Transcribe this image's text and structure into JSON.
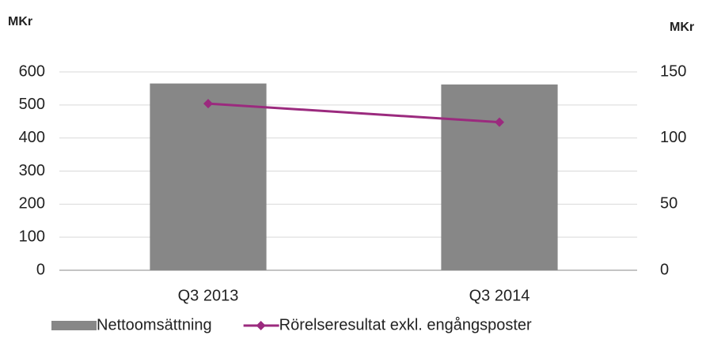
{
  "chart_data": {
    "type": "bar",
    "ylabel": "MKr",
    "y2label": "MKr",
    "categories": [
      "Q3 2013",
      "Q3 2014"
    ],
    "series": [
      {
        "name": "Nettoomsättning",
        "color": "#878787",
        "type": "bar",
        "values": [
          565,
          562
        ]
      },
      {
        "name": "Rörelseresultat exkl. engångsposter",
        "color": "#9b2a7e",
        "type": "line",
        "axis": "y2",
        "values": [
          126,
          112
        ]
      }
    ],
    "ylim": [
      0,
      600
    ],
    "yticks": [
      0,
      100,
      200,
      300,
      400,
      500,
      600
    ],
    "y2lim": [
      0,
      150
    ],
    "y2ticks": [
      0,
      50,
      100,
      150
    ],
    "grid": true,
    "legend": "bottom"
  }
}
